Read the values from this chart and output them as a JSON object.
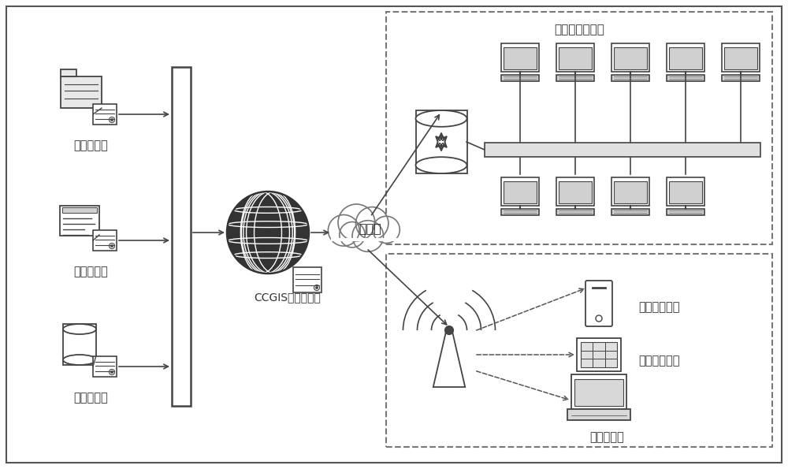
{
  "bg_color": "#ffffff",
  "border_color": "#555555",
  "text_color": "#333333",
  "icon_color": "#444444",
  "globe_color": "#222222",
  "labels": {
    "file_server": "文件服务器",
    "element_server": "要素服务器",
    "data_server": "数据服务器",
    "ccgis": "CCGIS应用服务器",
    "internet": "互联网",
    "indoor_net": "室内网络客户端",
    "mobile": "移动手机用户",
    "tablet": "平板电脑用户",
    "laptop": "笔记本用户"
  },
  "font_size_label": 10.5,
  "font_size_ccgis": 10,
  "font_size_box_title": 11
}
